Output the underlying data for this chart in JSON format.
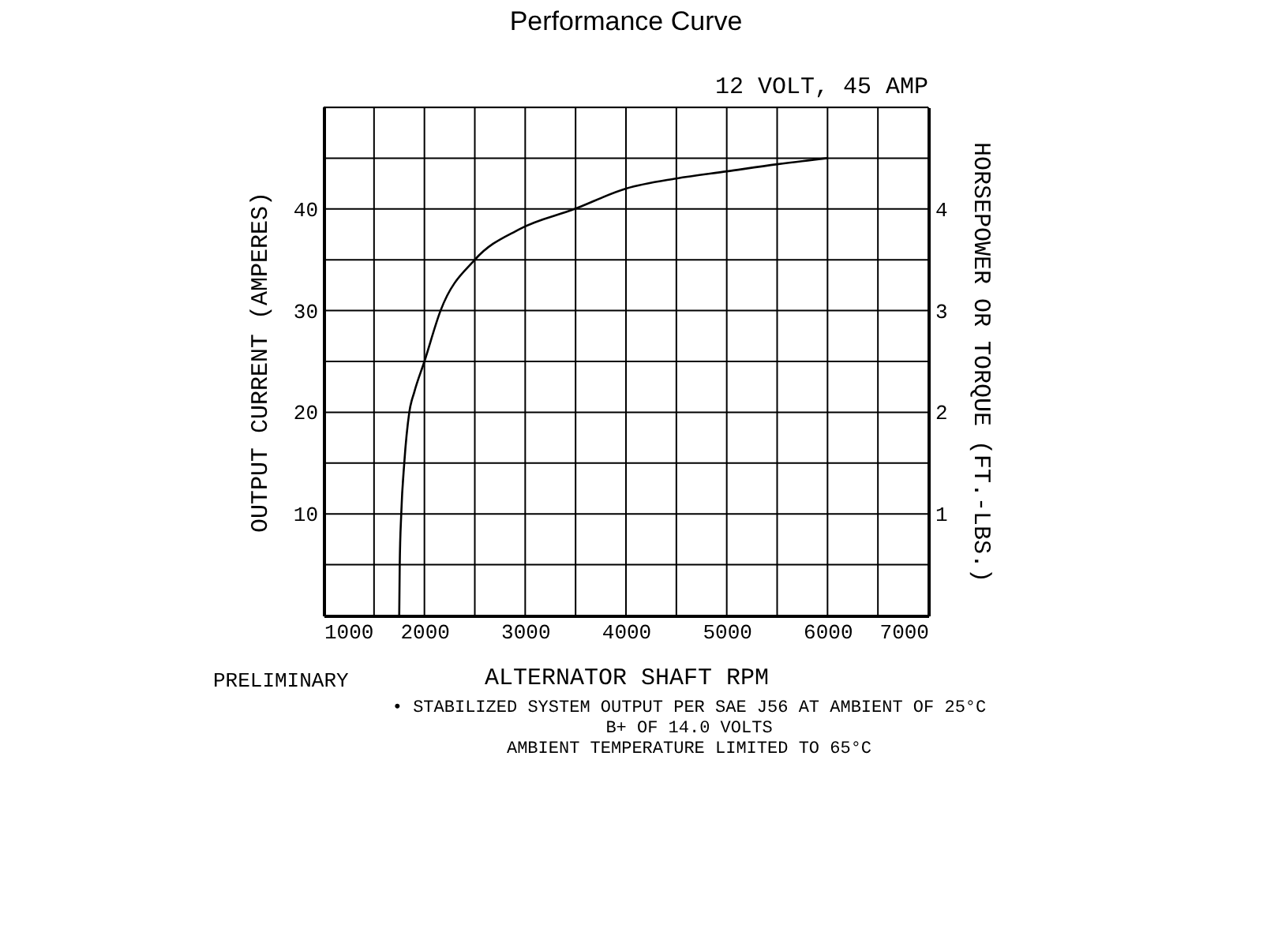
{
  "chart_data": {
    "type": "line",
    "title": "Performance Curve",
    "subtitle": "12 VOLT, 45 AMP",
    "xlabel": "ALTERNATOR SHAFT RPM",
    "ylabel": "OUTPUT CURRENT (AMPERES)",
    "y2label": "HORSEPOWER OR TORQUE (FT.-LBS.)",
    "annotations": [
      "PRELIMINARY",
      "• STABILIZED SYSTEM OUTPUT PER SAE J56 AT AMBIENT OF 25°C",
      "B+ OF 14.0 VOLTS",
      "AMBIENT TEMPERATURE LIMITED TO 65°C"
    ],
    "x": [
      1750,
      1755,
      1770,
      1800,
      1850,
      1900,
      2000,
      2160,
      2500,
      2940,
      3490,
      4000,
      4500,
      5000,
      5500,
      6000
    ],
    "series": [
      {
        "color": "#000000",
        "values": [
          0,
          5,
          10,
          15,
          20,
          22,
          25,
          30,
          35,
          38,
          40,
          42,
          43,
          43.7,
          44.4,
          45
        ]
      }
    ],
    "xlim": [
      1000,
      7000
    ],
    "xticks": [
      1000,
      {
        "value": 1500,
        "label": null
      },
      2000,
      {
        "value": 2500,
        "label": null
      },
      3000,
      {
        "value": 3500,
        "label": null
      },
      4000,
      {
        "value": 4500,
        "label": null
      },
      5000,
      {
        "value": 5500,
        "label": null
      },
      6000,
      {
        "value": 6500,
        "label": null
      },
      7000
    ],
    "ylim": [
      0,
      50
    ],
    "yticks": [
      {
        "value": 0,
        "label": null
      },
      {
        "value": 5,
        "label": null
      },
      10,
      {
        "value": 15,
        "label": null
      },
      20,
      {
        "value": 25,
        "label": null
      },
      30,
      {
        "value": 35,
        "label": null
      },
      40,
      {
        "value": 45,
        "label": null
      },
      {
        "value": 50,
        "label": null
      }
    ],
    "y2lim": [
      0,
      5
    ],
    "y2ticks": [
      1,
      2,
      3,
      4
    ],
    "grid": true,
    "marker": "none",
    "line_style": "solid"
  }
}
